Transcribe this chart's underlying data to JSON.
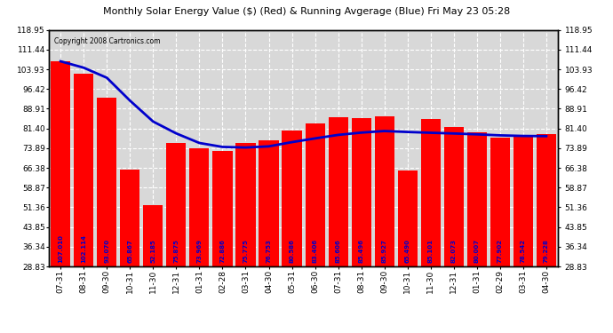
{
  "categories": [
    "07-31",
    "08-31",
    "09-30",
    "10-31",
    "11-30",
    "12-31",
    "01-31",
    "02-28",
    "03-31",
    "04-30",
    "05-31",
    "06-30",
    "07-31",
    "08-31",
    "09-30",
    "10-31",
    "11-30",
    "12-31",
    "01-31",
    "02-29",
    "03-31",
    "04-30"
  ],
  "bar_values": [
    107.01,
    102.114,
    93.07,
    65.867,
    52.185,
    75.875,
    73.969,
    72.886,
    75.775,
    76.753,
    80.586,
    83.406,
    85.606,
    85.496,
    85.927,
    65.49,
    85.101,
    82.073,
    80.007,
    77.902,
    78.542,
    79.228
  ],
  "running_avg": [
    107.01,
    104.562,
    100.731,
    92.015,
    84.049,
    79.519,
    75.876,
    74.372,
    74.148,
    74.584,
    76.193,
    77.614,
    78.954,
    79.825,
    80.427,
    80.072,
    79.768,
    79.499,
    79.164,
    78.783,
    78.554,
    78.479
  ],
  "title": "Monthly Solar Energy Value ($) (Red) & Running Avgerage (Blue) Fri May 23 05:28",
  "copyright": "Copyright 2008 Cartronics.com",
  "bar_color": "#FF0000",
  "line_color": "#0000CC",
  "label_color": "#0000CC",
  "plot_bg_color": "#D8D8D8",
  "grid_color": "#FFFFFF",
  "fig_bg_color": "#FFFFFF",
  "y_ticks": [
    28.83,
    36.34,
    43.85,
    51.36,
    58.87,
    66.38,
    73.89,
    81.4,
    88.91,
    96.42,
    103.93,
    111.44,
    118.95
  ],
  "ylim": [
    28.83,
    118.95
  ],
  "figsize": [
    6.9,
    3.75
  ],
  "dpi": 100
}
